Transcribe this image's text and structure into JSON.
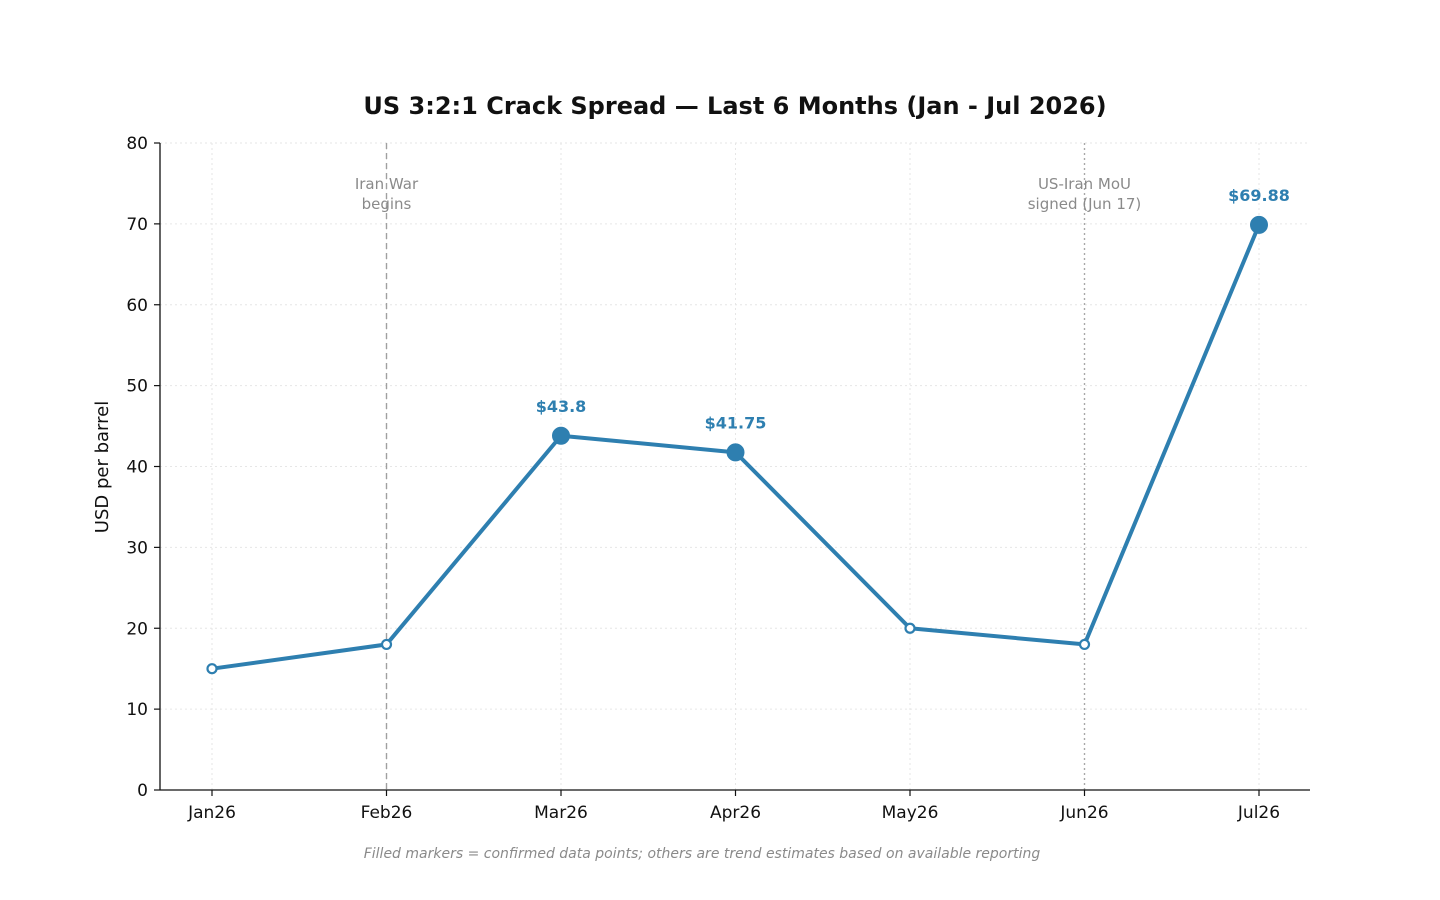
{
  "chart_data": {
    "type": "line",
    "title": "US 3:2:1 Crack Spread — Last 6 Months (Jan - Jul 2026)",
    "xlabel": "",
    "ylabel": "USD per barrel",
    "categories": [
      "Jan26",
      "Feb26",
      "Mar26",
      "Apr26",
      "May26",
      "Jun26",
      "Jul26"
    ],
    "ylim": [
      0,
      80
    ],
    "yticks": [
      0,
      10,
      20,
      30,
      40,
      50,
      60,
      70,
      80
    ],
    "grid": true,
    "series": [
      {
        "values": [
          15,
          18,
          43.8,
          41.75,
          20,
          18,
          69.88
        ],
        "confirmed": [
          false,
          false,
          true,
          true,
          false,
          false,
          true
        ],
        "data_labels": [
          "",
          "",
          "$43.8",
          "$41.75",
          "",
          "",
          "$69.88"
        ],
        "color": "#2e7fb0"
      }
    ],
    "annotations": [
      {
        "category": "Feb26",
        "lines": [
          "Iran War",
          "begins"
        ],
        "line_style": "dashed"
      },
      {
        "category": "Jun26",
        "lines": [
          "US-Iran MoU",
          "signed (Jun 17)"
        ],
        "line_style": "dotted"
      }
    ],
    "footnote": "Filled markers = confirmed data points; others are trend estimates based on available reporting"
  }
}
